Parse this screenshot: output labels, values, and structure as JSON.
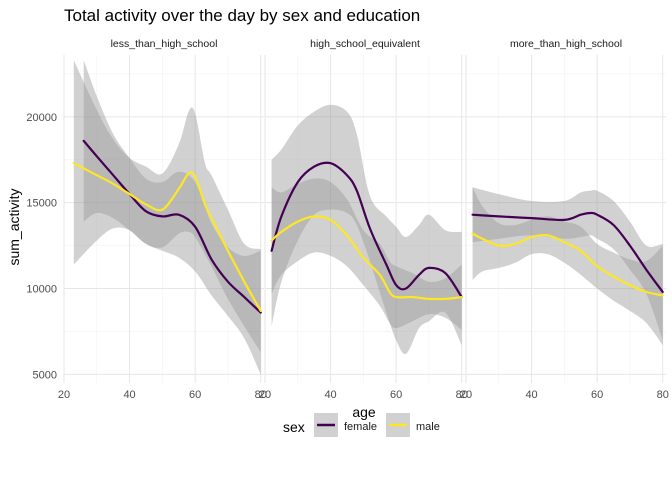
{
  "chart_data": {
    "type": "line",
    "title": "Total activity over the day by sex and education",
    "xlabel": "age",
    "ylabel": "sum_activity",
    "xlim": [
      20,
      81
    ],
    "ylim": [
      4500,
      23600
    ],
    "xticks": [
      20,
      40,
      60,
      80
    ],
    "yticks": [
      5000,
      10000,
      15000,
      20000
    ],
    "grid": true,
    "legend": {
      "title": "sex",
      "position": "bottom"
    },
    "colors": {
      "female": "#440154",
      "male": "#FDE725",
      "band": "#999999"
    },
    "panels": [
      {
        "title": "less_than_high_school",
        "series": [
          {
            "name": "female",
            "x": [
              26,
              30,
              35,
              40,
              45,
              50,
              55,
              60,
              65,
              70,
              75,
              80
            ],
            "y": [
              18600,
              17700,
              16600,
              15500,
              14500,
              14200,
              14300,
              13600,
              11700,
              10400,
              9500,
              8600
            ],
            "lower": [
              13900,
              14400,
              14100,
              13400,
              12600,
              12200,
              11800,
              11000,
              9600,
              8400,
              7100,
              5000
            ],
            "upper": [
              23300,
              21200,
              19000,
              17600,
              16400,
              16200,
              16800,
              16200,
              13800,
              12400,
              11900,
              12200
            ]
          },
          {
            "name": "male",
            "x": [
              23,
              30,
              35,
              40,
              45,
              50,
              55,
              58,
              60,
              63,
              65,
              70,
              75,
              80
            ],
            "y": [
              17300,
              16600,
              16100,
              15500,
              14900,
              14600,
              15800,
              16700,
              16500,
              14900,
              14100,
              12200,
              10400,
              8700
            ],
            "lower": [
              11400,
              12800,
              13500,
              13400,
              12600,
              12400,
              13200,
              13300,
              13000,
              12000,
              11300,
              9400,
              7800,
              6300
            ],
            "upper": [
              23300,
              20400,
              18700,
              17600,
              17100,
              16700,
              18400,
              20300,
              20200,
              17300,
              16600,
              14600,
              12600,
              12300
            ]
          }
        ]
      },
      {
        "title": "high_school_equivalent",
        "series": [
          {
            "name": "female",
            "x": [
              22,
              25,
              30,
              35,
              40,
              45,
              48,
              52,
              57,
              60,
              63,
              67,
              70,
              75,
              80
            ],
            "y": [
              12200,
              14200,
              16200,
              17100,
              17300,
              16600,
              15700,
              13500,
              11400,
              10200,
              10000,
              10800,
              11200,
              10900,
              9500
            ],
            "lower": [
              7800,
              10400,
              12800,
              14300,
              14600,
              14400,
              13700,
              11600,
              8600,
              7000,
              6200,
              7700,
              8100,
              8600,
              6700
            ],
            "upper": [
              17500,
              18100,
              19500,
              20300,
              20700,
              20300,
              19000,
              15400,
              14200,
              13600,
              13000,
              13700,
              14300,
              13400,
              13300
            ]
          },
          {
            "name": "male",
            "x": [
              22,
              25,
              30,
              35,
              40,
              45,
              50,
              55,
              58,
              60,
              65,
              70,
              75,
              80
            ],
            "y": [
              12800,
              13300,
              13900,
              14200,
              14000,
              13100,
              11800,
              10800,
              9800,
              9500,
              9500,
              9400,
              9400,
              9500
            ],
            "lower": [
              9700,
              10800,
              11600,
              12100,
              11900,
              11300,
              10200,
              9000,
              8000,
              7700,
              8100,
              8500,
              8300,
              7600
            ],
            "upper": [
              15900,
              15600,
              16100,
              16400,
              16200,
              15200,
              13400,
              12600,
              11600,
              11300,
              10900,
              10400,
              10600,
              11400
            ]
          }
        ]
      },
      {
        "title": "more_than_high_school",
        "series": [
          {
            "name": "female",
            "x": [
              22,
              30,
              40,
              50,
              55,
              58,
              60,
              65,
              70,
              75,
              80
            ],
            "y": [
              14300,
              14200,
              14100,
              14000,
              14300,
              14400,
              14300,
              13700,
              12500,
              11100,
              9800
            ],
            "lower": [
              12700,
              12900,
              13100,
              12900,
              13000,
              13100,
              12900,
              12300,
              11100,
              9700,
              7000
            ],
            "upper": [
              15900,
              15500,
              15100,
              15100,
              15600,
              15700,
              15700,
              15100,
              13900,
              12500,
              12600
            ]
          },
          {
            "name": "male",
            "x": [
              22,
              25,
              30,
              35,
              40,
              45,
              50,
              55,
              60,
              65,
              70,
              75,
              80
            ],
            "y": [
              13200,
              12900,
              12500,
              12600,
              13000,
              13100,
              12700,
              12200,
              11300,
              10700,
              10200,
              9800,
              9600
            ],
            "lower": [
              10500,
              11000,
              11200,
              11500,
              12000,
              12000,
              11500,
              10800,
              10000,
              9300,
              8700,
              8000,
              6700
            ],
            "upper": [
              15900,
              14800,
              13800,
              13700,
              14000,
              14200,
              13900,
              13600,
              12600,
              12100,
              11700,
              11600,
              12500
            ]
          }
        ]
      }
    ]
  }
}
